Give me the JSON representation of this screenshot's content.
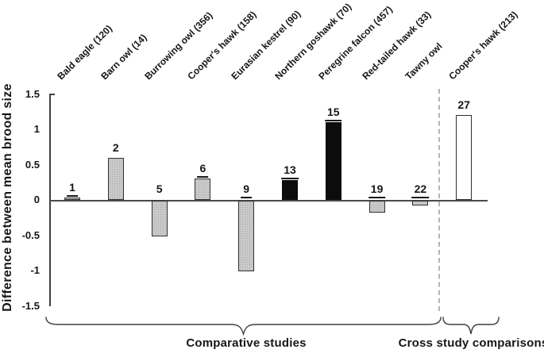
{
  "chart_data": {
    "type": "bar",
    "title": "",
    "ylabel": "Difference between mean brood size",
    "xlabel": "",
    "ylim": [
      -1.5,
      1.5
    ],
    "ytick_labels": [
      "1.5",
      "1",
      "0.5",
      "0",
      "-0.5",
      "-1",
      "-1.5"
    ],
    "ytick_values": [
      1.5,
      1,
      0.5,
      0,
      -0.5,
      -1,
      -1.5
    ],
    "grid": false,
    "categories": [
      "Bald eagle (120)",
      "Barn owl (14)",
      "Burrowing owl (356)",
      "Cooper's hawk (158)",
      "Eurasian kestrel (90)",
      "Northern goshawk (70)",
      "Peregrine falcon (457)",
      "Red-tailed hawk (33)",
      "Tawny owl",
      "Cooper's hawk (213)"
    ],
    "values": [
      0.03,
      0.6,
      -0.5,
      0.3,
      -1.0,
      0.28,
      1.1,
      -0.17,
      -0.07,
      1.2
    ],
    "bar_numbers": [
      "1",
      "2",
      "5",
      "6",
      "9",
      "13",
      "15",
      "19",
      "22",
      "27"
    ],
    "bar_number_underlined": [
      true,
      false,
      false,
      true,
      true,
      true,
      true,
      true,
      true,
      false
    ],
    "bar_fill": [
      "gray",
      "gray",
      "gray",
      "gray",
      "gray",
      "black",
      "black",
      "gray",
      "gray",
      "white"
    ],
    "groups": [
      {
        "label": "Comparative studies",
        "from_index": 0,
        "to_index": 8
      },
      {
        "label": "Cross study comparisons",
        "from_index": 9,
        "to_index": 9
      }
    ],
    "divider_between": [
      "Tawny owl",
      "Cooper's hawk (213)"
    ],
    "colors": {
      "gray": "#c9c9c9",
      "black": "#0c0c0c",
      "white": "#ffffff",
      "bar_border": "#2f2f2f",
      "axis": "#3f3f3f",
      "dashed_divider": "#b5b5b5",
      "text": "#161616"
    },
    "legend": null
  }
}
